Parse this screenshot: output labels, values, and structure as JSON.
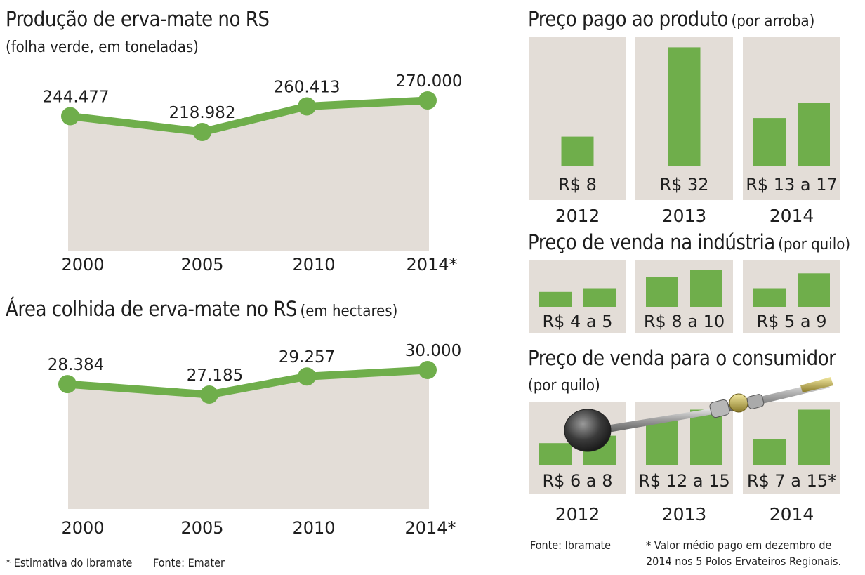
{
  "chart_data": [
    {
      "type": "area",
      "title": "Produção de erva-mate no RS",
      "subtitle": "(folha verde, em toneladas)",
      "categories": [
        "2000",
        "2005",
        "2010",
        "2014*"
      ],
      "values": [
        244477,
        218982,
        260413,
        270000
      ],
      "value_labels": [
        "244.477",
        "218.982",
        "260.413",
        "270.000"
      ],
      "line_color": "#6fae4b",
      "fill_color": "#e3ddd7"
    },
    {
      "type": "area",
      "title": "Área colhida de erva-mate no RS",
      "subtitle": "(em hectares)",
      "categories": [
        "2000",
        "2005",
        "2010",
        "2014*"
      ],
      "values": [
        28384,
        27185,
        29257,
        30000
      ],
      "value_labels": [
        "28.384",
        "27.185",
        "29.257",
        "30.000"
      ],
      "line_color": "#6fae4b",
      "fill_color": "#e3ddd7"
    },
    {
      "type": "bar",
      "title": "Preço pago ao produto",
      "subtitle": "(por arroba)",
      "unit": "R$",
      "groups": [
        {
          "year": "2012",
          "label": "R$ 8",
          "values": [
            8
          ]
        },
        {
          "year": "2013",
          "label": "R$ 32",
          "values": [
            32
          ]
        },
        {
          "year": "2014",
          "label": "R$ 13 a 17",
          "values": [
            13,
            17
          ]
        }
      ],
      "bar_color": "#6fae4b"
    },
    {
      "type": "bar",
      "title": "Preço de venda na indústria",
      "subtitle": "(por quilo)",
      "unit": "R$",
      "groups": [
        {
          "year": "2012",
          "label": "R$ 4 a 5",
          "values": [
            4,
            5
          ]
        },
        {
          "year": "2013",
          "label": "R$ 8 a 10",
          "values": [
            8,
            10
          ]
        },
        {
          "year": "2014",
          "label": "R$ 5 a 9",
          "values": [
            5,
            9
          ]
        }
      ],
      "bar_color": "#6fae4b"
    },
    {
      "type": "bar",
      "title": "Preço de venda para o consumidor",
      "subtitle": "(por quilo)",
      "unit": "R$",
      "groups": [
        {
          "year": "2012",
          "label": "R$ 6 a 8",
          "values": [
            6,
            8
          ]
        },
        {
          "year": "2013",
          "label": "R$ 12 a 15",
          "values": [
            12,
            15
          ]
        },
        {
          "year": "2014",
          "label": "R$ 7 a 15*",
          "values": [
            7,
            15
          ]
        }
      ],
      "bar_color": "#6fae4b"
    }
  ],
  "footnotes": {
    "left_estimate": "* Estimativa do Ibramate",
    "left_source": "Fonte: Emater",
    "right_source": "Fonte: Ibramate",
    "right_note_1": "* Valor médio pago em dezembro de",
    "right_note_2": "2014 nos 5 Polos Ervateiros Regionais."
  },
  "colors": {
    "panel": "#e3ddd7",
    "green": "#6fae4b",
    "text": "#1e1e1e"
  }
}
